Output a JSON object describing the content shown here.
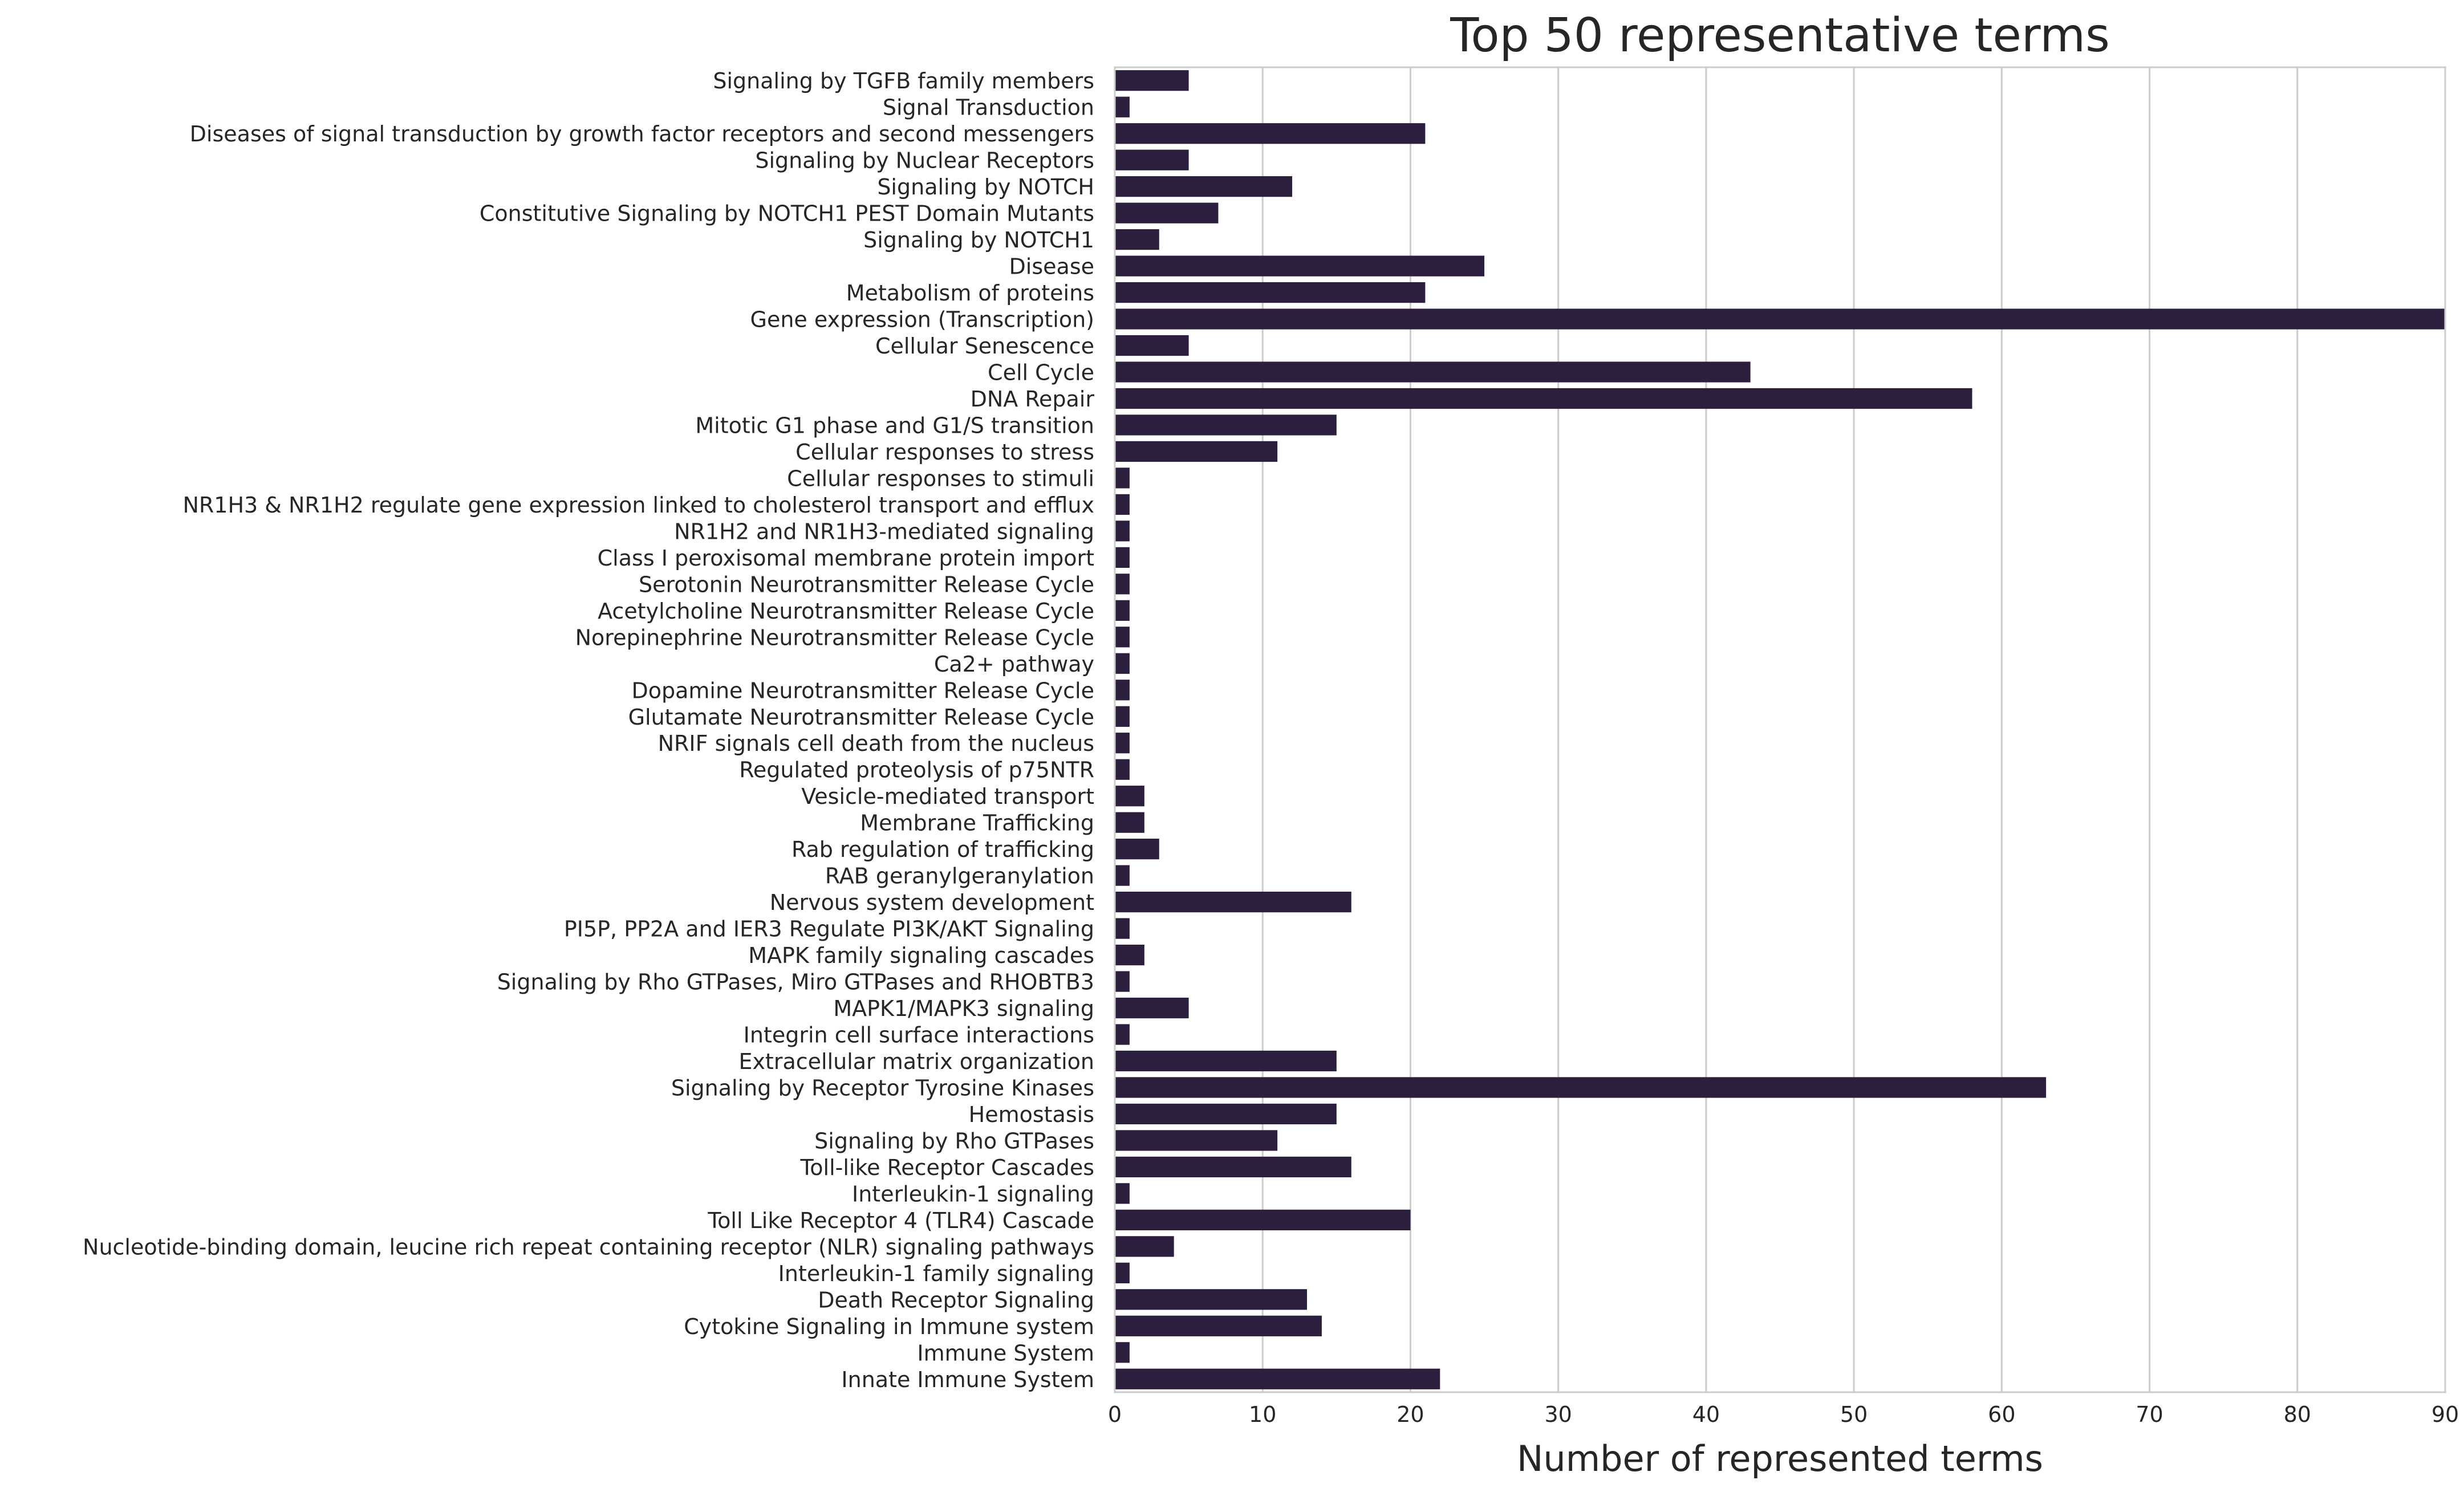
{
  "chart_data": {
    "type": "bar",
    "orientation": "horizontal",
    "title": "Top 50 representative terms",
    "xlabel": "Number of represented terms",
    "ylabel": "",
    "xlim": [
      0,
      90
    ],
    "xticks": [
      0,
      10,
      20,
      30,
      40,
      50,
      60,
      70,
      80,
      90
    ],
    "grid": "vertical",
    "bar_color": "#2c1f3e",
    "categories": [
      "Signaling by TGFB family members",
      "Signal Transduction",
      "Diseases of signal transduction by growth factor receptors and second messengers",
      "Signaling by Nuclear Receptors",
      "Signaling by NOTCH",
      "Constitutive Signaling by NOTCH1 PEST Domain Mutants",
      "Signaling by NOTCH1",
      "Disease",
      "Metabolism of proteins",
      "Gene expression (Transcription)",
      "Cellular Senescence",
      "Cell Cycle",
      "DNA Repair",
      "Mitotic G1 phase and G1/S transition",
      "Cellular responses to stress",
      "Cellular responses to stimuli",
      "NR1H3 & NR1H2 regulate gene expression linked to cholesterol transport and efflux",
      "NR1H2 and NR1H3-mediated signaling",
      "Class I peroxisomal membrane protein import",
      "Serotonin Neurotransmitter Release Cycle",
      "Acetylcholine Neurotransmitter Release Cycle",
      "Norepinephrine Neurotransmitter Release Cycle",
      "Ca2+ pathway",
      "Dopamine Neurotransmitter Release Cycle",
      "Glutamate Neurotransmitter Release Cycle",
      "NRIF signals cell death from the nucleus",
      "Regulated proteolysis of p75NTR",
      "Vesicle-mediated transport",
      "Membrane Trafficking",
      "Rab regulation of trafficking",
      "RAB geranylgeranylation",
      "Nervous system development",
      "PI5P, PP2A and IER3 Regulate PI3K/AKT Signaling",
      "MAPK family signaling cascades",
      "Signaling by Rho GTPases, Miro GTPases and RHOBTB3",
      "MAPK1/MAPK3 signaling",
      "Integrin cell surface interactions",
      "Extracellular matrix organization",
      "Signaling by Receptor Tyrosine Kinases",
      "Hemostasis",
      "Signaling by Rho GTPases",
      "Toll-like Receptor Cascades",
      "Interleukin-1 signaling",
      "Toll Like Receptor 4 (TLR4) Cascade",
      "Nucleotide-binding domain, leucine rich repeat containing receptor (NLR) signaling pathways",
      "Interleukin-1 family signaling",
      "Death Receptor Signaling",
      "Cytokine Signaling in Immune system",
      "Immune System",
      "Innate Immune System"
    ],
    "values": [
      5,
      1,
      21,
      5,
      12,
      7,
      3,
      25,
      21,
      90,
      5,
      43,
      58,
      15,
      11,
      1,
      1,
      1,
      1,
      1,
      1,
      1,
      1,
      1,
      1,
      1,
      1,
      2,
      2,
      3,
      1,
      16,
      1,
      2,
      1,
      5,
      1,
      15,
      63,
      15,
      11,
      16,
      1,
      20,
      4,
      1,
      13,
      14,
      1,
      22
    ]
  }
}
